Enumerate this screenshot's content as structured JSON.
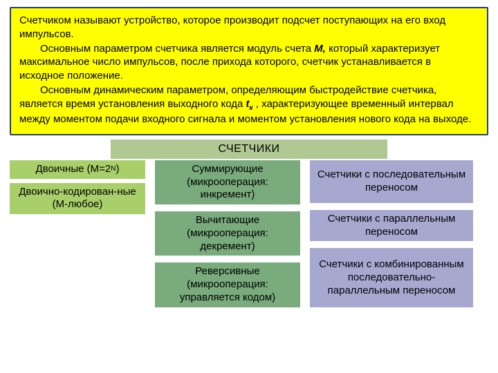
{
  "colors": {
    "page_bg": "#ffffff",
    "intro_bg": "#ffff00",
    "intro_border": "#1f3d7a",
    "text": "#000000",
    "title_bg": "#b0c993",
    "col1_bg": "#a9cf6b",
    "col2_bg": "#79ab7c",
    "col3_bg": "#a7a8d0"
  },
  "intro": {
    "p1_a": "Счетчиком называют устройство, которое производит подсчет поступающих на его вход импульсов.",
    "p2_a": "Основным параметром счетчика является модуль счета ",
    "p2_b": "М,",
    "p2_c": " который характеризует максимальное число импульсов, после прихода которого, счетчик устанавливается в исходное положение.",
    "p3_a": "Основным динамическим параметром, определяющим быстродействие счетчика, является время установления выходного кода ",
    "p3_b": "t",
    "p3_sub": "к",
    "p3_c": " , характеризующее временный интервал между моментом подачи входного сигнала и моментом установления нового кода на выходе."
  },
  "title": "СЧЕТЧИКИ",
  "col1": {
    "box1_a": "Двоичные (М=2",
    "box1_sup": "N",
    "box1_b": ")",
    "box2": "Двоично-кодирован-ные (М-любое)"
  },
  "col2": {
    "box1": "Суммирующие (микрооперация: инкремент)",
    "box2": "Вычитающие (микрооперация: декремент)",
    "box3": "Реверсивные (микрооперация: управляется кодом)"
  },
  "col3": {
    "box1": "Счетчики с последовательным переносом",
    "box2": "Счетчики с параллельным переносом",
    "box3": "Счетчики с комбинированным последовательно-параллельным переносом"
  },
  "box_heights": {
    "col1_box1": 26,
    "col1_box2": 42,
    "col2_box": 62,
    "col3_box1": 62,
    "col3_box2": 44,
    "col3_box3": 86
  }
}
